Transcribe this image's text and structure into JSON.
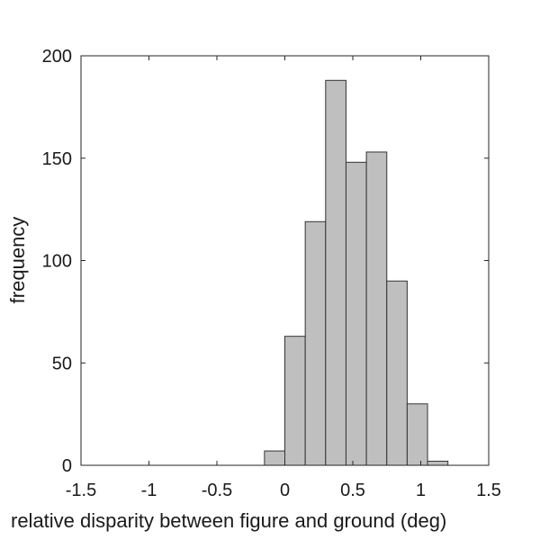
{
  "chart_data": {
    "type": "bar",
    "title": "",
    "xlabel": "relative disparity between figure and ground (deg)",
    "ylabel": "frequency",
    "xlim": [
      -1.5,
      1.5
    ],
    "ylim": [
      0,
      200
    ],
    "x_ticks": [
      "-1.5",
      "-1",
      "-0.5",
      "0",
      "0.5",
      "1",
      "1.5"
    ],
    "y_ticks": [
      "0",
      "50",
      "100",
      "150",
      "200"
    ],
    "bin_width": 0.15,
    "bins": [
      {
        "x0": -0.15,
        "x1": 0.0,
        "value": 7
      },
      {
        "x0": 0.0,
        "x1": 0.15,
        "value": 63
      },
      {
        "x0": 0.15,
        "x1": 0.3,
        "value": 119
      },
      {
        "x0": 0.3,
        "x1": 0.45,
        "value": 188
      },
      {
        "x0": 0.45,
        "x1": 0.6,
        "value": 148
      },
      {
        "x0": 0.6,
        "x1": 0.75,
        "value": 153
      },
      {
        "x0": 0.75,
        "x1": 0.9,
        "value": 90
      },
      {
        "x0": 0.9,
        "x1": 1.05,
        "value": 30
      },
      {
        "x0": 1.05,
        "x1": 1.2,
        "value": 2
      }
    ],
    "bar_color": "#bfbfbf",
    "bar_edge_color": "#333333",
    "grid": false
  }
}
